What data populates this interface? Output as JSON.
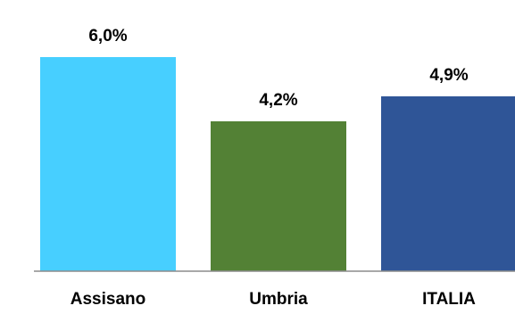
{
  "chart_data": {
    "type": "bar",
    "title": "",
    "xlabel": "",
    "ylabel": "",
    "categories": [
      "Assisano",
      "Umbria",
      "ITALIA"
    ],
    "values": [
      6.0,
      4.2,
      4.9
    ],
    "value_labels": [
      "6,0%",
      "4,2%",
      "4,9%"
    ],
    "colors": [
      "#47CFFF",
      "#538135",
      "#2F5597"
    ],
    "ylim": [
      0,
      6.0
    ],
    "grid": false,
    "legend": "none"
  }
}
